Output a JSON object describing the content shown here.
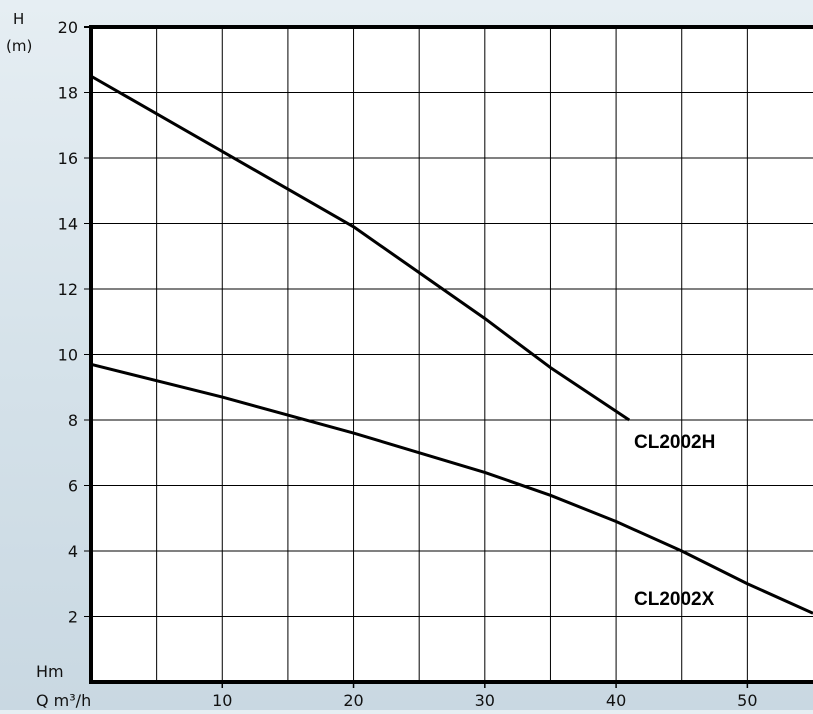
{
  "chart_data": {
    "type": "line",
    "title": "",
    "xlabel": "Q m³/h",
    "ylabel_top": "H",
    "ylabel_unit": "(m)",
    "ylabel_bottom": "Hm",
    "xlim": [
      0,
      55
    ],
    "ylim": [
      0,
      20
    ],
    "x_ticks": [
      10,
      20,
      30,
      40,
      50
    ],
    "y_ticks": [
      2,
      4,
      6,
      8,
      10,
      12,
      14,
      16,
      18,
      20
    ],
    "x_minor_step": 5,
    "grid": true,
    "series": [
      {
        "name": "CL2002H",
        "points": [
          [
            0,
            18.5
          ],
          [
            10,
            16.2
          ],
          [
            20,
            13.9
          ],
          [
            25,
            12.5
          ],
          [
            30,
            11.1
          ],
          [
            35,
            9.6
          ],
          [
            41,
            8.0
          ]
        ]
      },
      {
        "name": "CL2002X",
        "points": [
          [
            0,
            9.7
          ],
          [
            10,
            8.7
          ],
          [
            20,
            7.6
          ],
          [
            30,
            6.4
          ],
          [
            35,
            5.7
          ],
          [
            40,
            4.9
          ],
          [
            45,
            4.0
          ],
          [
            50,
            3.0
          ],
          [
            55,
            2.1
          ]
        ]
      }
    ],
    "colors": {
      "line": "#000000",
      "grid": "#000000",
      "background_top": "#e6eef3",
      "background_bottom": "#c9d8e2"
    }
  }
}
